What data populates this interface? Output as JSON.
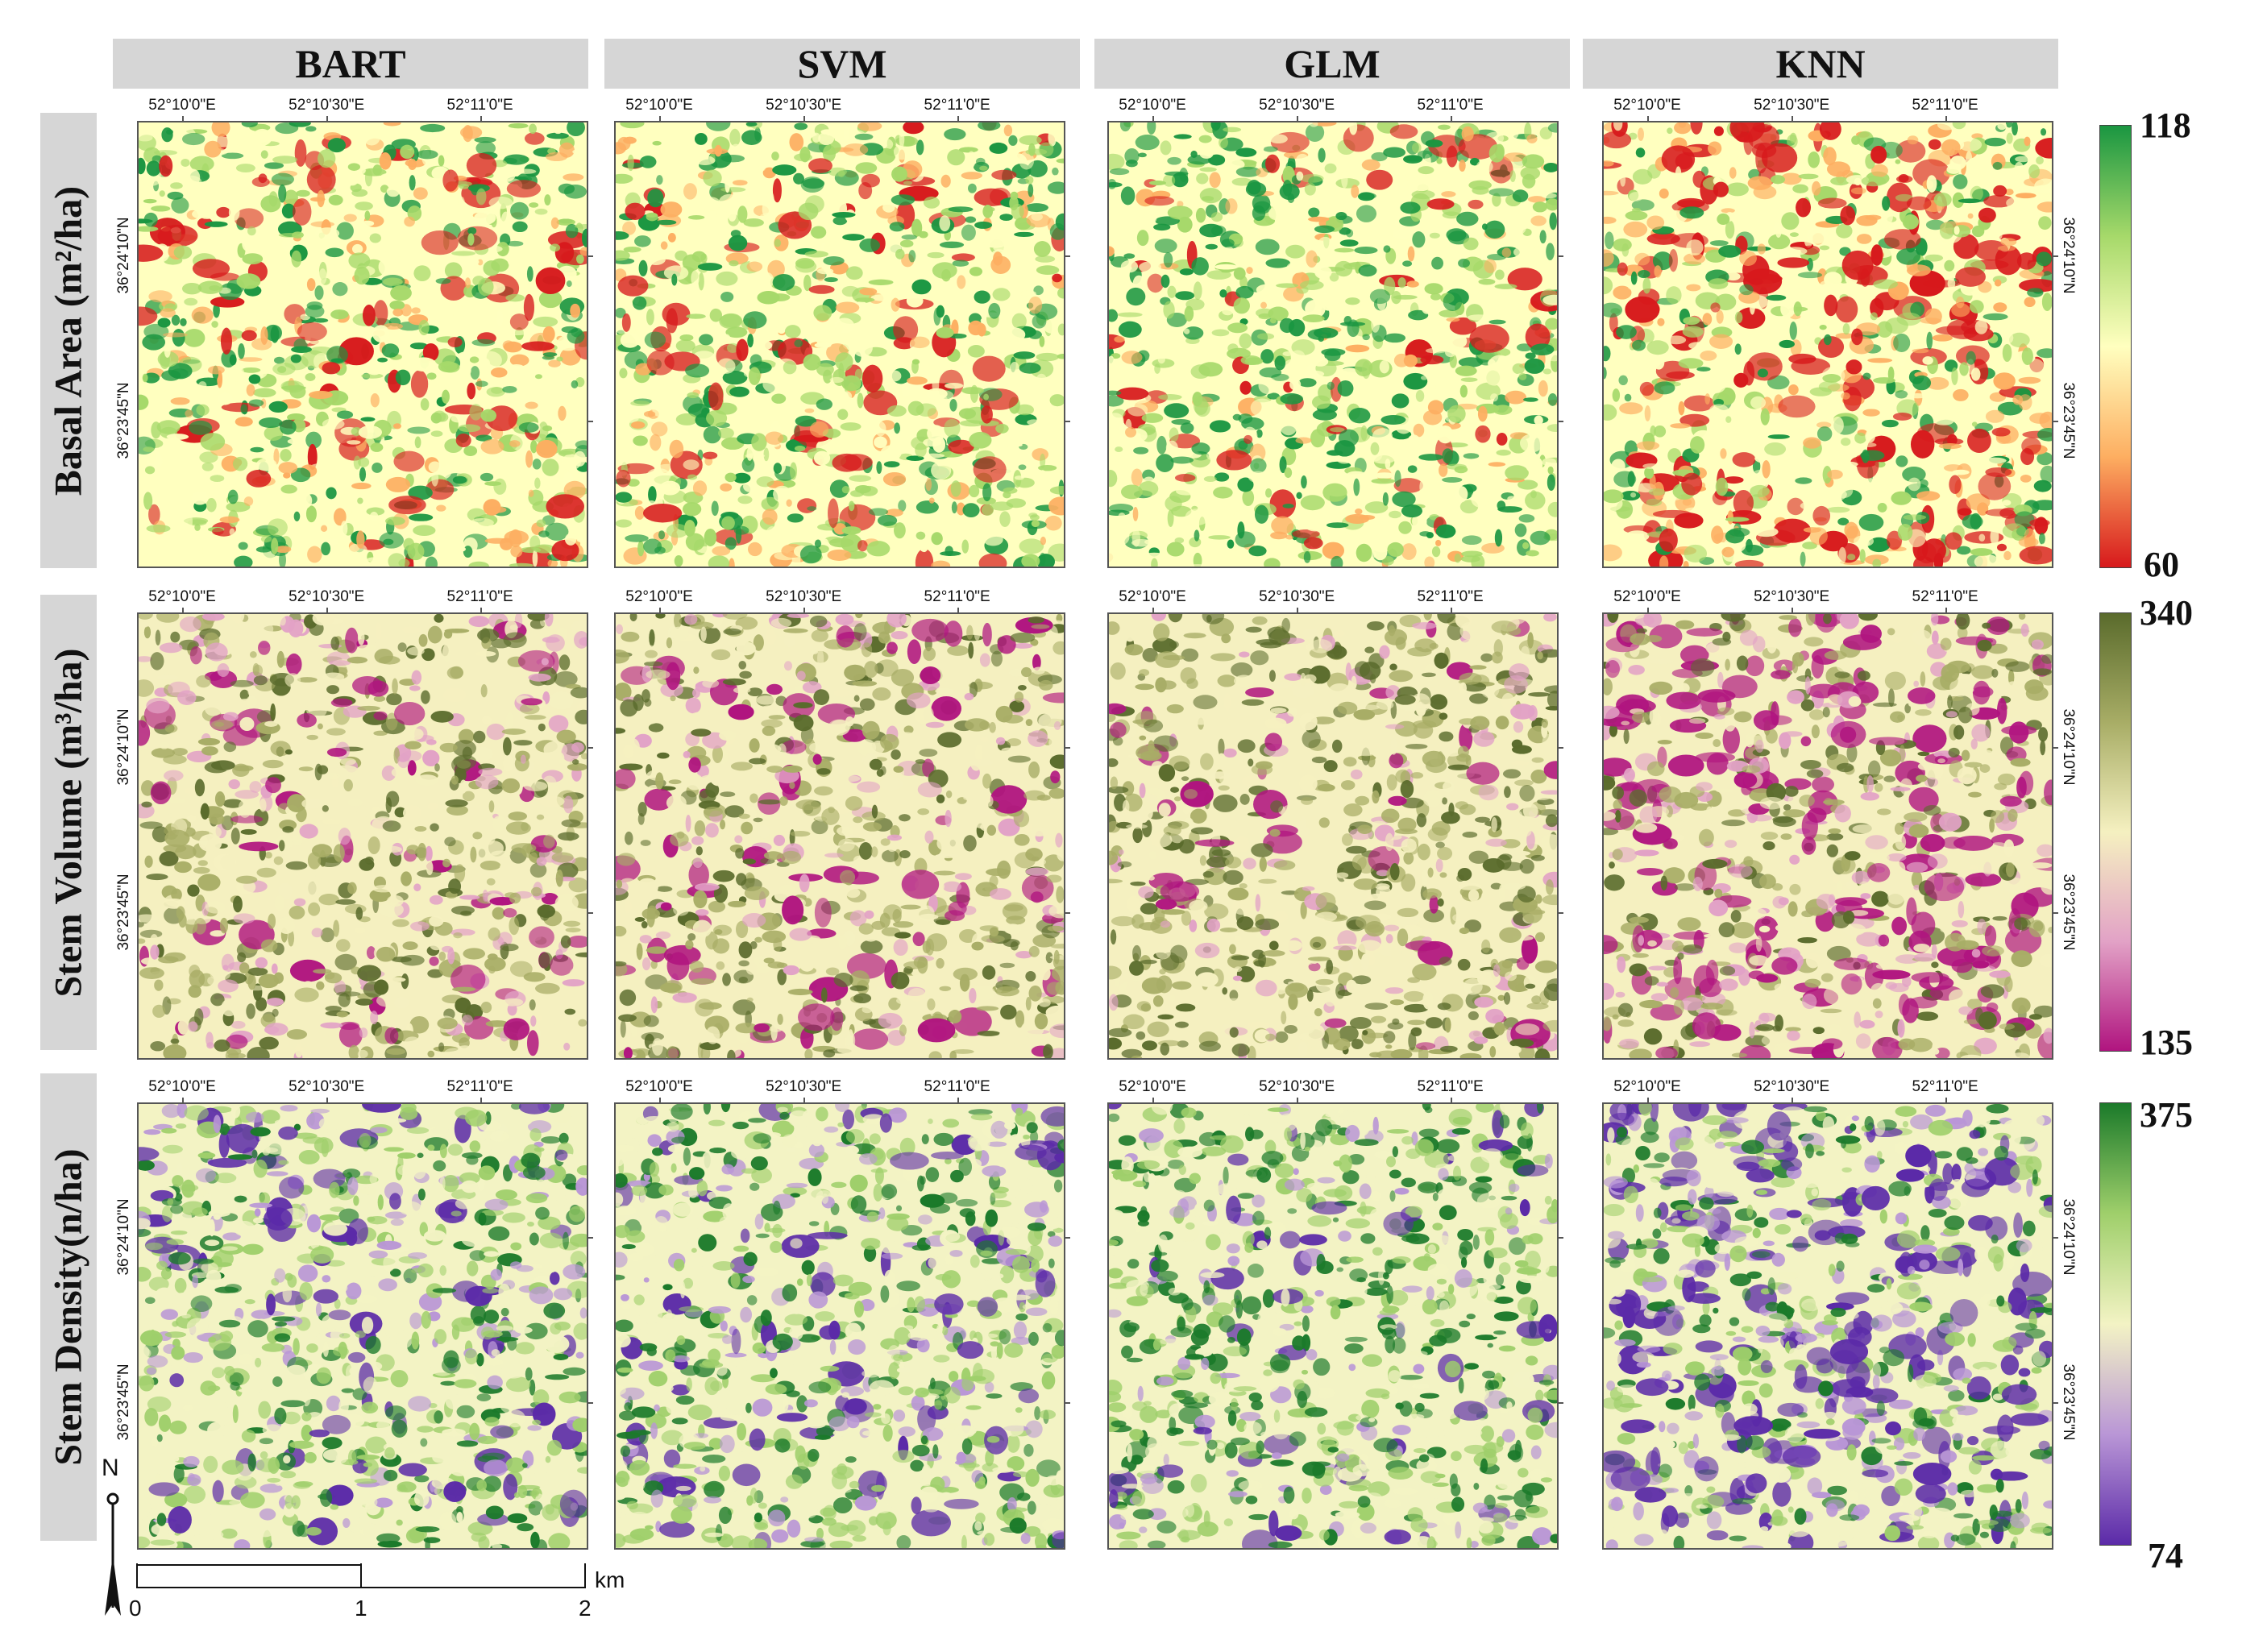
{
  "columns": [
    "BART",
    "SVM",
    "GLM",
    "KNN"
  ],
  "rows": [
    {
      "label": "Basal Area  (m²/ha)",
      "legend_max": "118",
      "legend_min": "60",
      "colors": [
        "#1a9641",
        "#a6d96a",
        "#ffffbf",
        "#fdae61",
        "#d7191c"
      ]
    },
    {
      "label": "Stem Volume (m³/ha)",
      "legend_max": "340",
      "legend_min": "135",
      "colors": [
        "#5a6b2c",
        "#a8ad66",
        "#f5f0c0",
        "#e2a2c6",
        "#b0147f"
      ]
    },
    {
      "label": "Stem Density(n/ha)",
      "legend_max": "375",
      "legend_min": "74",
      "colors": [
        "#1b7a2a",
        "#9fcf6b",
        "#f3f3c4",
        "#b996d6",
        "#5b2aa8"
      ]
    }
  ],
  "lon_labels": [
    "52°10'0\"E",
    "52°10'30\"E",
    "52°11'0\"E"
  ],
  "lat_labels": [
    "36°24'10\"N",
    "36°23'45\"N"
  ],
  "north_arrow": "N",
  "scalebar": {
    "labels": [
      "0",
      "1",
      "2"
    ],
    "unit": "km"
  }
}
